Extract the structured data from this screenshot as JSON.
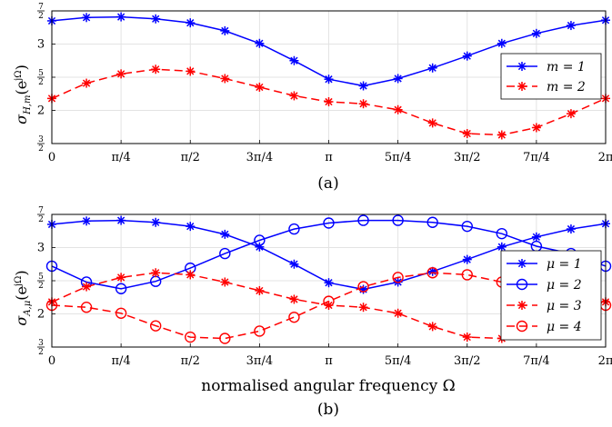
{
  "chart_data": [
    {
      "type": "line",
      "caption": "(a)",
      "ylabel": "σ_{H,m}(e^{jΩ})",
      "xlabel": "",
      "xlim": [
        0,
        6.2832
      ],
      "ylim": [
        1.5,
        3.5
      ],
      "grid": true,
      "x_ticks": [
        "0",
        "π/4",
        "π/2",
        "3π/4",
        "π",
        "5π/4",
        "3π/2",
        "7π/4",
        "2π"
      ],
      "y_ticks": [
        "3/2",
        "2",
        "5/2",
        "3",
        "7/2"
      ],
      "legend": {
        "placement": "right",
        "entries": [
          "m = 1",
          "m = 2"
        ]
      },
      "x": [
        0,
        0.3927,
        0.7854,
        1.1781,
        1.5708,
        1.9635,
        2.3562,
        2.7489,
        3.1416,
        3.5343,
        3.927,
        4.3197,
        4.7124,
        5.1051,
        5.4978,
        5.8905,
        6.2832
      ],
      "series": [
        {
          "name": "m = 1",
          "color": "#0000ff",
          "style": "solid",
          "marker": "star",
          "values": [
            3.35,
            3.4,
            3.41,
            3.38,
            3.32,
            3.2,
            3.01,
            2.75,
            2.47,
            2.37,
            2.48,
            2.64,
            2.82,
            3.01,
            3.16,
            3.28,
            3.36
          ]
        },
        {
          "name": "m = 2",
          "color": "#ff0000",
          "style": "dashed",
          "marker": "star",
          "values": [
            2.18,
            2.41,
            2.55,
            2.62,
            2.59,
            2.48,
            2.35,
            2.22,
            2.13,
            2.1,
            2.01,
            1.81,
            1.65,
            1.63,
            1.74,
            1.95,
            2.18
          ]
        }
      ]
    },
    {
      "type": "line",
      "caption": "(b)",
      "ylabel": "σ_{A,μ}(e^{jΩ})",
      "xlabel": "normalised angular frequency Ω",
      "xlim": [
        0,
        6.2832
      ],
      "ylim": [
        1.5,
        3.5
      ],
      "grid": true,
      "x_ticks": [
        "0",
        "π/4",
        "π/2",
        "3π/4",
        "π",
        "5π/4",
        "3π/2",
        "7π/4",
        "2π"
      ],
      "y_ticks": [
        "3/2",
        "2",
        "5/2",
        "3",
        "7/2"
      ],
      "legend": {
        "placement": "right",
        "entries": [
          "μ = 1",
          "μ = 2",
          "μ = 3",
          "μ = 4"
        ]
      },
      "x": [
        0,
        0.3927,
        0.7854,
        1.1781,
        1.5708,
        1.9635,
        2.3562,
        2.7489,
        3.1416,
        3.5343,
        3.927,
        4.3197,
        4.7124,
        5.1051,
        5.4978,
        5.8905,
        6.2832
      ],
      "series": [
        {
          "name": "μ = 1",
          "color": "#0000ff",
          "style": "solid",
          "marker": "star",
          "values": [
            3.35,
            3.4,
            3.41,
            3.38,
            3.32,
            3.2,
            3.01,
            2.75,
            2.47,
            2.37,
            2.48,
            2.64,
            2.82,
            3.01,
            3.16,
            3.28,
            3.36
          ]
        },
        {
          "name": "μ = 2",
          "color": "#0000ff",
          "style": "solid",
          "marker": "circle",
          "values": [
            2.72,
            2.48,
            2.38,
            2.49,
            2.69,
            2.91,
            3.11,
            3.28,
            3.37,
            3.41,
            3.41,
            3.38,
            3.32,
            3.21,
            3.02,
            2.91,
            2.72
          ]
        },
        {
          "name": "μ = 3",
          "color": "#ff0000",
          "style": "dashed",
          "marker": "star",
          "values": [
            2.18,
            2.41,
            2.55,
            2.62,
            2.59,
            2.48,
            2.35,
            2.22,
            2.13,
            2.1,
            2.01,
            1.81,
            1.65,
            1.63,
            1.74,
            1.95,
            2.18
          ]
        },
        {
          "name": "μ = 4",
          "color": "#ff0000",
          "style": "dashed",
          "marker": "circle",
          "values": [
            2.13,
            2.1,
            2.01,
            1.82,
            1.65,
            1.63,
            1.74,
            1.95,
            2.19,
            2.41,
            2.55,
            2.62,
            2.59,
            2.48,
            2.35,
            2.22,
            2.13
          ]
        }
      ]
    }
  ]
}
